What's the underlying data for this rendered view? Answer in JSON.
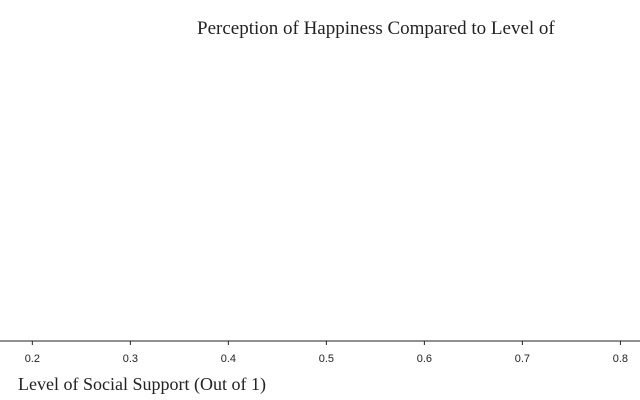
{
  "chart_data": {
    "type": "scatter",
    "title": "Perception of Happiness Compared to Level of",
    "x_label": "Level of Social Support (Out of 1)",
    "xlim": [
      0.167,
      0.82
    ],
    "xticks": [
      0.2,
      0.3,
      0.4,
      0.5,
      0.6,
      0.7,
      0.8
    ]
  }
}
